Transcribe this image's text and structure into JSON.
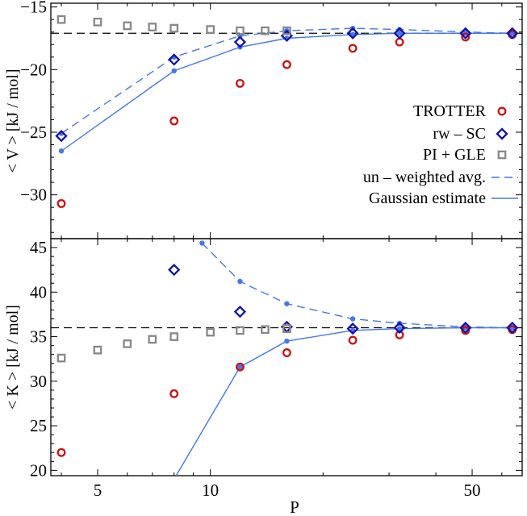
{
  "chart_data": [
    {
      "type": "scatter",
      "panel": "top",
      "xlabel": "",
      "ylabel": "< V > [kJ / mol]",
      "xscale": "log",
      "xlim": [
        3.75,
        68
      ],
      "ylim": [
        -33.5,
        -14.7
      ],
      "yticks": [
        -15,
        -20,
        -25,
        -30
      ],
      "reference_line": -17.1,
      "legend_position": "right",
      "series": [
        {
          "name": "TROTTER",
          "marker": "circle",
          "color": "#cc1111",
          "x": [
            4,
            8,
            12,
            16,
            24,
            32,
            48,
            64
          ],
          "y": [
            -30.7,
            -24.1,
            -21.1,
            -19.6,
            -18.3,
            -17.8,
            -17.4,
            -17.2
          ]
        },
        {
          "name": "rw – SC",
          "marker": "diamond",
          "color": "#1111aa",
          "x": [
            4,
            8,
            12,
            16,
            24,
            32,
            48,
            64
          ],
          "y": [
            -25.3,
            -19.2,
            -17.8,
            -17.3,
            -17.1,
            -17.1,
            -17.1,
            -17.1
          ]
        },
        {
          "name": "PI + GLE",
          "marker": "square",
          "color": "#888888",
          "x": [
            4,
            5,
            6,
            7,
            8,
            10,
            12,
            14,
            16
          ],
          "y": [
            -16.0,
            -16.2,
            -16.5,
            -16.6,
            -16.7,
            -16.8,
            -16.9,
            -16.9,
            -16.9
          ]
        },
        {
          "name": "un – weighted avg.",
          "marker": "dashed-line",
          "color": "#4477ee",
          "x": [
            4,
            8,
            12,
            16,
            24,
            32,
            48,
            64
          ],
          "y": [
            -25.1,
            -19.0,
            -17.3,
            -16.9,
            -16.7,
            -16.8,
            -17.0,
            -17.1
          ]
        },
        {
          "name": "Gaussian estimate",
          "marker": "solid-line",
          "color": "#4477ee",
          "x": [
            4,
            8,
            12,
            16,
            24,
            32,
            48,
            64
          ],
          "y": [
            -26.5,
            -20.1,
            -18.2,
            -17.5,
            -17.2,
            -17.1,
            -17.1,
            -17.1
          ]
        }
      ]
    },
    {
      "type": "scatter",
      "panel": "bottom",
      "xlabel": "P",
      "ylabel": "< K > [kJ / mol]",
      "xscale": "log",
      "xlim": [
        3.75,
        68
      ],
      "ylim": [
        19.4,
        46
      ],
      "yticks": [
        20,
        25,
        30,
        35,
        40,
        45
      ],
      "xticks": [
        5,
        10,
        50
      ],
      "reference_line": 36.0,
      "series": [
        {
          "name": "TROTTER",
          "marker": "circle",
          "color": "#cc1111",
          "x": [
            4,
            8,
            12,
            16,
            24,
            32,
            48,
            64
          ],
          "y": [
            22.0,
            28.6,
            31.6,
            33.2,
            34.6,
            35.2,
            35.7,
            35.8
          ]
        },
        {
          "name": "rw – SC",
          "marker": "diamond",
          "color": "#1111aa",
          "x": [
            8,
            12,
            16,
            24,
            32,
            48,
            64
          ],
          "y": [
            42.5,
            37.8,
            36.1,
            35.9,
            36.0,
            36.0,
            36.0
          ]
        },
        {
          "name": "PI + GLE",
          "marker": "square",
          "color": "#888888",
          "x": [
            4,
            5,
            6,
            7,
            8,
            10,
            12,
            14,
            16
          ],
          "y": [
            32.6,
            33.5,
            34.2,
            34.7,
            35.0,
            35.5,
            35.7,
            35.8,
            35.9
          ]
        },
        {
          "name": "un – weighted avg.",
          "marker": "dashed-line",
          "color": "#4477ee",
          "x": [
            9.5,
            12,
            16,
            24,
            32,
            48,
            64
          ],
          "y": [
            45.5,
            41.2,
            38.7,
            37.0,
            36.5,
            36.1,
            36.0
          ]
        },
        {
          "name": "Gaussian estimate",
          "marker": "solid-line",
          "color": "#4477ee",
          "x": [
            8.1,
            12,
            16,
            24,
            32,
            48,
            64
          ],
          "y": [
            19.4,
            31.6,
            34.5,
            35.7,
            35.9,
            36.0,
            36.0
          ]
        }
      ]
    }
  ]
}
